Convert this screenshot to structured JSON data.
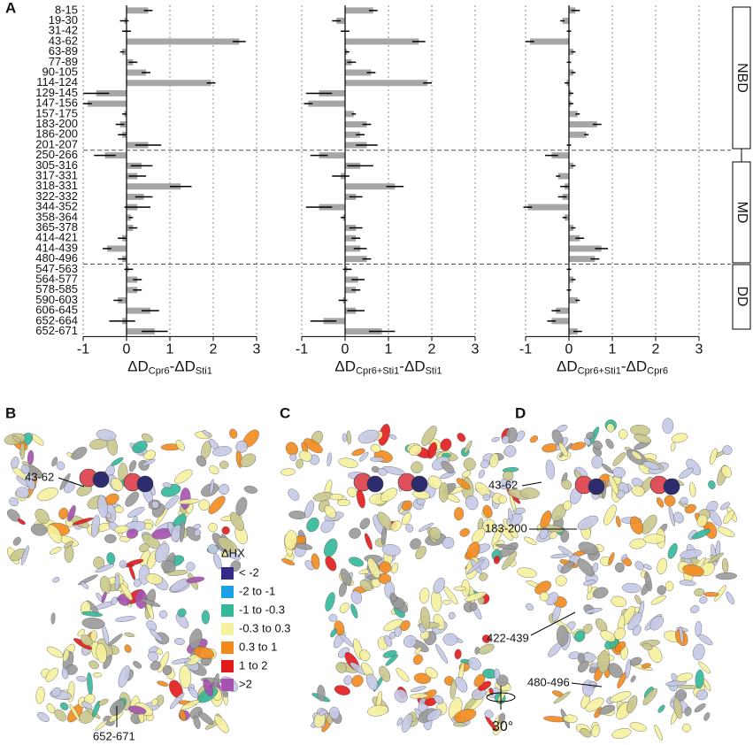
{
  "panel_labels": [
    "A",
    "B",
    "C",
    "D"
  ],
  "chart_data": [
    {
      "type": "hbar",
      "color": "#a6a6a6",
      "categories": [
        "8-15",
        "19-30",
        "31-42",
        "43-62",
        "63-89",
        "77-89",
        "90-105",
        "114-124",
        "129-145",
        "147-156",
        "157-175",
        "183-200",
        "186-200",
        "201-207",
        "250-266",
        "305-316",
        "317-331",
        "318-331",
        "322-332",
        "344-352",
        "358-364",
        "365-378",
        "414-421",
        "414-439",
        "480-496",
        "547-563",
        "564-577",
        "578-585",
        "590-603",
        "606-645",
        "652-664",
        "652-671"
      ],
      "values": [
        0.5,
        -0.05,
        0,
        2.6,
        -0.1,
        0.15,
        0.45,
        1.95,
        -0.7,
        -0.9,
        -0.05,
        -0.15,
        -0.1,
        0.5,
        -0.5,
        0.35,
        0.25,
        1.25,
        0.4,
        0.25,
        0.1,
        0.15,
        -0.1,
        -0.45,
        -0.1,
        0.05,
        0.25,
        0.25,
        -0.2,
        0.55,
        -0.1,
        0.65
      ],
      "errors": [
        0.1,
        0.1,
        0.1,
        0.15,
        0.05,
        0.1,
        0.1,
        0.1,
        0.3,
        0.1,
        0.05,
        0.1,
        0.1,
        0.3,
        0.25,
        0.25,
        0.2,
        0.25,
        0.2,
        0.3,
        0.05,
        0.1,
        0.1,
        0.1,
        0.1,
        0.1,
        0.1,
        0.1,
        0.1,
        0.2,
        0.3,
        0.3
      ],
      "xlim": [
        -1,
        3
      ],
      "xticks": [
        -1,
        0,
        1,
        2,
        3
      ],
      "grid": true,
      "xlabel": [
        "ΔD",
        "Cpr6",
        "-ΔD",
        "Sti1"
      ]
    },
    {
      "type": "hbar",
      "color": "#a6a6a6",
      "values": [
        0.65,
        -0.2,
        0,
        1.7,
        0.05,
        0.15,
        0.6,
        1.9,
        -0.6,
        -0.85,
        0.2,
        0.5,
        0.35,
        0.5,
        -0.6,
        0.35,
        -0.1,
        1.15,
        0.25,
        -0.6,
        -0.05,
        0.25,
        0.25,
        0.35,
        0.5,
        0.05,
        0.3,
        0.25,
        -0.05,
        0.25,
        -0.5,
        0.85
      ],
      "errors": [
        0.1,
        0.1,
        0.1,
        0.15,
        0.05,
        0.1,
        0.1,
        0.1,
        0.3,
        0.1,
        0.05,
        0.1,
        0.1,
        0.25,
        0.2,
        0.3,
        0.2,
        0.2,
        0.15,
        0.3,
        0.05,
        0.15,
        0.1,
        0.15,
        0.1,
        0.1,
        0.15,
        0.1,
        0.1,
        0.2,
        0.3,
        0.3
      ],
      "xlim": [
        -1,
        3
      ],
      "xticks": [
        -1,
        0,
        1,
        2,
        3
      ],
      "grid": true,
      "xlabel": [
        "ΔD",
        "Cpr6+Sti1",
        "-ΔD",
        "Sti1"
      ]
    },
    {
      "type": "hbar",
      "color": "#a6a6a6",
      "values": [
        0.15,
        -0.15,
        0,
        -0.9,
        0.1,
        0,
        0.1,
        -0.05,
        0.05,
        0.05,
        0.2,
        0.65,
        0.4,
        0,
        -0.4,
        0.1,
        -0.25,
        -0.1,
        -0.15,
        -0.95,
        -0.1,
        0.1,
        0.25,
        0.75,
        0.6,
        0,
        0.1,
        0,
        0.2,
        -0.3,
        -0.4,
        0.2
      ],
      "errors": [
        0.1,
        0.05,
        0.05,
        0.1,
        0.05,
        0.05,
        0.05,
        0.05,
        0.05,
        0.05,
        0.05,
        0.1,
        0.05,
        0.05,
        0.15,
        0.05,
        0.05,
        0.1,
        0.1,
        0.1,
        0.05,
        0.05,
        0.1,
        0.15,
        0.1,
        0.05,
        0.05,
        0.05,
        0.05,
        0.1,
        0.1,
        0.1
      ],
      "xlim": [
        -1,
        3
      ],
      "xticks": [
        -1,
        0,
        1,
        2,
        3
      ],
      "grid": true,
      "xlabel": [
        "ΔD",
        "Cpr6+Sti1",
        "-ΔD",
        "Cpr6"
      ]
    }
  ],
  "domains": [
    "NBD",
    "MD",
    "DD"
  ],
  "legend": {
    "title": "ΔHX",
    "items": [
      {
        "label": "< -2",
        "color": "#352a87"
      },
      {
        "label": "-2 to -1",
        "color": "#1ea0e6"
      },
      {
        "label": "-1 to -0.3",
        "color": "#33b89a"
      },
      {
        "label": "-0.3 to 0.3",
        "color": "#f6f19e"
      },
      {
        "label": "0.3 to 1",
        "color": "#f18a1c"
      },
      {
        "label": "1 to 2",
        "color": "#e31a1c"
      },
      {
        "label": ">2",
        "color": "#a552b0"
      }
    ]
  },
  "annotations": {
    "B": [
      "43-62",
      "652-671"
    ],
    "D": [
      "43-62",
      "183-200",
      "422-439",
      "480-496",
      "30°"
    ]
  }
}
